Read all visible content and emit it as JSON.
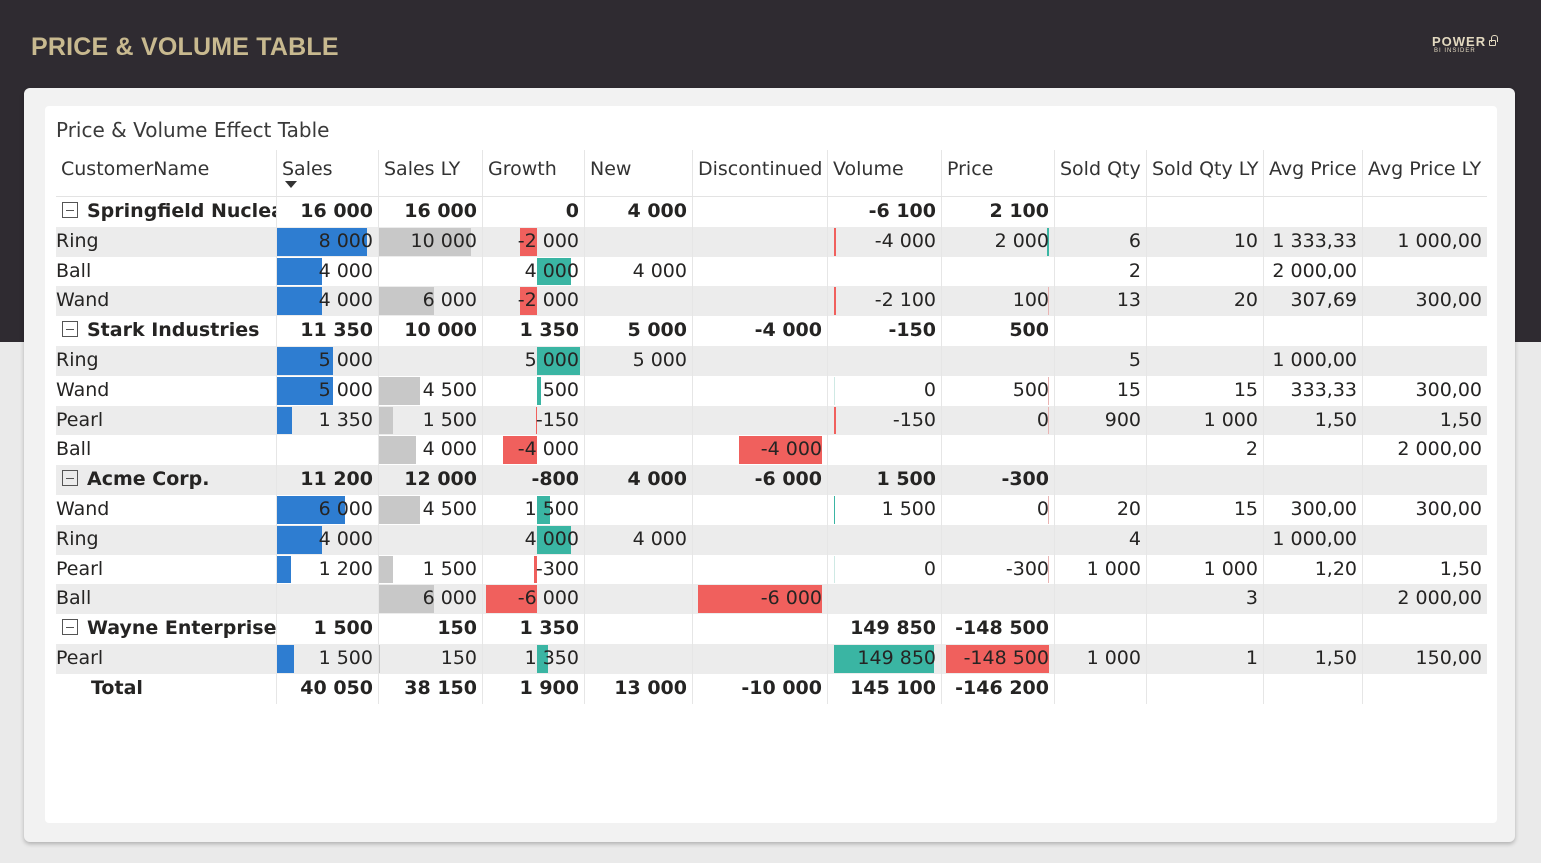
{
  "page": {
    "title": "PRICE & VOLUME TABLE",
    "logo_main": "POWER",
    "logo_sub": "BI INSIDER"
  },
  "visual": {
    "title": "Price & Volume Effect Table"
  },
  "colors": {
    "sales_bar": "#2e7dd1",
    "sales_ly_bar": "#c8c8c8",
    "positive": "#3ab5a3",
    "negative": "#f0605d"
  },
  "columns": [
    "CustomerName",
    "Sales",
    "Sales LY",
    "Growth",
    "New",
    "Discontinued",
    "Volume",
    "Price",
    "Sold Qty",
    "Sold Qty LY",
    "Avg Price",
    "Avg Price LY"
  ],
  "rows": [
    {
      "type": "group",
      "name": "Springfield Nuclear",
      "sales": "16 000",
      "sales_ly": "16 000",
      "growth": "0",
      "new": "4 000",
      "discontinued": "",
      "volume": "-6 100",
      "price": "2 100",
      "sold_qty": "",
      "sold_qty_ly": "",
      "avg_price": "",
      "avg_price_ly": ""
    },
    {
      "type": "child",
      "name": "Ring",
      "sales": "8 000",
      "sales_ly": "10 000",
      "growth": "-2 000",
      "new": "",
      "discontinued": "",
      "volume": "-4 000",
      "price": "2 000",
      "sold_qty": "6",
      "sold_qty_ly": "10",
      "avg_price": "1 333,33",
      "avg_price_ly": "1 000,00"
    },
    {
      "type": "child",
      "name": "Ball",
      "sales": "4 000",
      "sales_ly": "",
      "growth": "4 000",
      "new": "4 000",
      "discontinued": "",
      "volume": "",
      "price": "",
      "sold_qty": "2",
      "sold_qty_ly": "",
      "avg_price": "2 000,00",
      "avg_price_ly": ""
    },
    {
      "type": "child",
      "name": "Wand",
      "sales": "4 000",
      "sales_ly": "6 000",
      "growth": "-2 000",
      "new": "",
      "discontinued": "",
      "volume": "-2 100",
      "price": "100",
      "sold_qty": "13",
      "sold_qty_ly": "20",
      "avg_price": "307,69",
      "avg_price_ly": "300,00"
    },
    {
      "type": "group",
      "name": "Stark Industries",
      "sales": "11 350",
      "sales_ly": "10 000",
      "growth": "1 350",
      "new": "5 000",
      "discontinued": "-4 000",
      "volume": "-150",
      "price": "500",
      "sold_qty": "",
      "sold_qty_ly": "",
      "avg_price": "",
      "avg_price_ly": ""
    },
    {
      "type": "child",
      "name": "Ring",
      "sales": "5 000",
      "sales_ly": "",
      "growth": "5 000",
      "new": "5 000",
      "discontinued": "",
      "volume": "",
      "price": "",
      "sold_qty": "5",
      "sold_qty_ly": "",
      "avg_price": "1 000,00",
      "avg_price_ly": ""
    },
    {
      "type": "child",
      "name": "Wand",
      "sales": "5 000",
      "sales_ly": "4 500",
      "growth": "500",
      "new": "",
      "discontinued": "",
      "volume": "0",
      "price": "500",
      "sold_qty": "15",
      "sold_qty_ly": "15",
      "avg_price": "333,33",
      "avg_price_ly": "300,00"
    },
    {
      "type": "child",
      "name": "Pearl",
      "sales": "1 350",
      "sales_ly": "1 500",
      "growth": "-150",
      "new": "",
      "discontinued": "",
      "volume": "-150",
      "price": "0",
      "sold_qty": "900",
      "sold_qty_ly": "1 000",
      "avg_price": "1,50",
      "avg_price_ly": "1,50"
    },
    {
      "type": "child",
      "name": "Ball",
      "sales": "",
      "sales_ly": "4 000",
      "growth": "-4 000",
      "new": "",
      "discontinued": "-4 000",
      "volume": "",
      "price": "",
      "sold_qty": "",
      "sold_qty_ly": "2",
      "avg_price": "",
      "avg_price_ly": "2 000,00"
    },
    {
      "type": "group",
      "name": "Acme Corp.",
      "sales": "11 200",
      "sales_ly": "12 000",
      "growth": "-800",
      "new": "4 000",
      "discontinued": "-6 000",
      "volume": "1 500",
      "price": "-300",
      "sold_qty": "",
      "sold_qty_ly": "",
      "avg_price": "",
      "avg_price_ly": ""
    },
    {
      "type": "child",
      "name": "Wand",
      "sales": "6 000",
      "sales_ly": "4 500",
      "growth": "1 500",
      "new": "",
      "discontinued": "",
      "volume": "1 500",
      "price": "0",
      "sold_qty": "20",
      "sold_qty_ly": "15",
      "avg_price": "300,00",
      "avg_price_ly": "300,00"
    },
    {
      "type": "child",
      "name": "Ring",
      "sales": "4 000",
      "sales_ly": "",
      "growth": "4 000",
      "new": "4 000",
      "discontinued": "",
      "volume": "",
      "price": "",
      "sold_qty": "4",
      "sold_qty_ly": "",
      "avg_price": "1 000,00",
      "avg_price_ly": ""
    },
    {
      "type": "child",
      "name": "Pearl",
      "sales": "1 200",
      "sales_ly": "1 500",
      "growth": "-300",
      "new": "",
      "discontinued": "",
      "volume": "0",
      "price": "-300",
      "sold_qty": "1 000",
      "sold_qty_ly": "1 000",
      "avg_price": "1,20",
      "avg_price_ly": "1,50"
    },
    {
      "type": "child",
      "name": "Ball",
      "sales": "",
      "sales_ly": "6 000",
      "growth": "-6 000",
      "new": "",
      "discontinued": "-6 000",
      "volume": "",
      "price": "",
      "sold_qty": "",
      "sold_qty_ly": "3",
      "avg_price": "",
      "avg_price_ly": "2 000,00"
    },
    {
      "type": "group",
      "name": "Wayne Enterprises",
      "sales": "1 500",
      "sales_ly": "150",
      "growth": "1 350",
      "new": "",
      "discontinued": "",
      "volume": "149 850",
      "price": "-148 500",
      "sold_qty": "",
      "sold_qty_ly": "",
      "avg_price": "",
      "avg_price_ly": ""
    },
    {
      "type": "child",
      "name": "Pearl",
      "sales": "1 500",
      "sales_ly": "150",
      "growth": "1 350",
      "new": "",
      "discontinued": "",
      "volume": "149 850",
      "price": "-148 500",
      "sold_qty": "1 000",
      "sold_qty_ly": "1",
      "avg_price": "1,50",
      "avg_price_ly": "150,00"
    },
    {
      "type": "total",
      "name": "Total",
      "sales": "40 050",
      "sales_ly": "38 150",
      "growth": "1 900",
      "new": "13 000",
      "discontinued": "-10 000",
      "volume": "145 100",
      "price": "-146 200",
      "sold_qty": "",
      "sold_qty_ly": "",
      "avg_price": "",
      "avg_price_ly": ""
    }
  ]
}
